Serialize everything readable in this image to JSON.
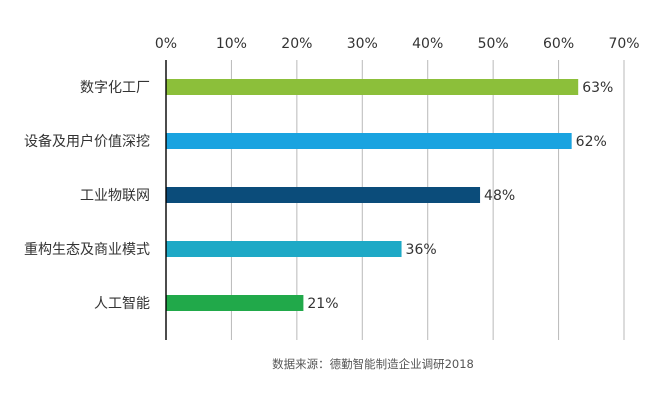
{
  "chart_data": {
    "type": "bar",
    "orientation": "horizontal",
    "categories": [
      "数字化工厂",
      "设备及用户价值深挖",
      "工业物联网",
      "重构生态及商业模式",
      "人工智能"
    ],
    "values": [
      63,
      62,
      48,
      36,
      21
    ],
    "value_suffix": "%",
    "colors": [
      "#8cbf3a",
      "#1aa3e0",
      "#0b4c7a",
      "#1ea9c6",
      "#21a94a"
    ],
    "xlim": [
      0,
      70
    ],
    "xticks": [
      0,
      10,
      20,
      30,
      40,
      50,
      60,
      70
    ],
    "xtick_labels": [
      "0%",
      "10%",
      "20%",
      "30%",
      "40%",
      "50%",
      "60%",
      "70%"
    ],
    "x_axis_position": "top",
    "grid": true,
    "legend": "none",
    "source": "数据来源：德勤智能制造企业调研2018"
  }
}
